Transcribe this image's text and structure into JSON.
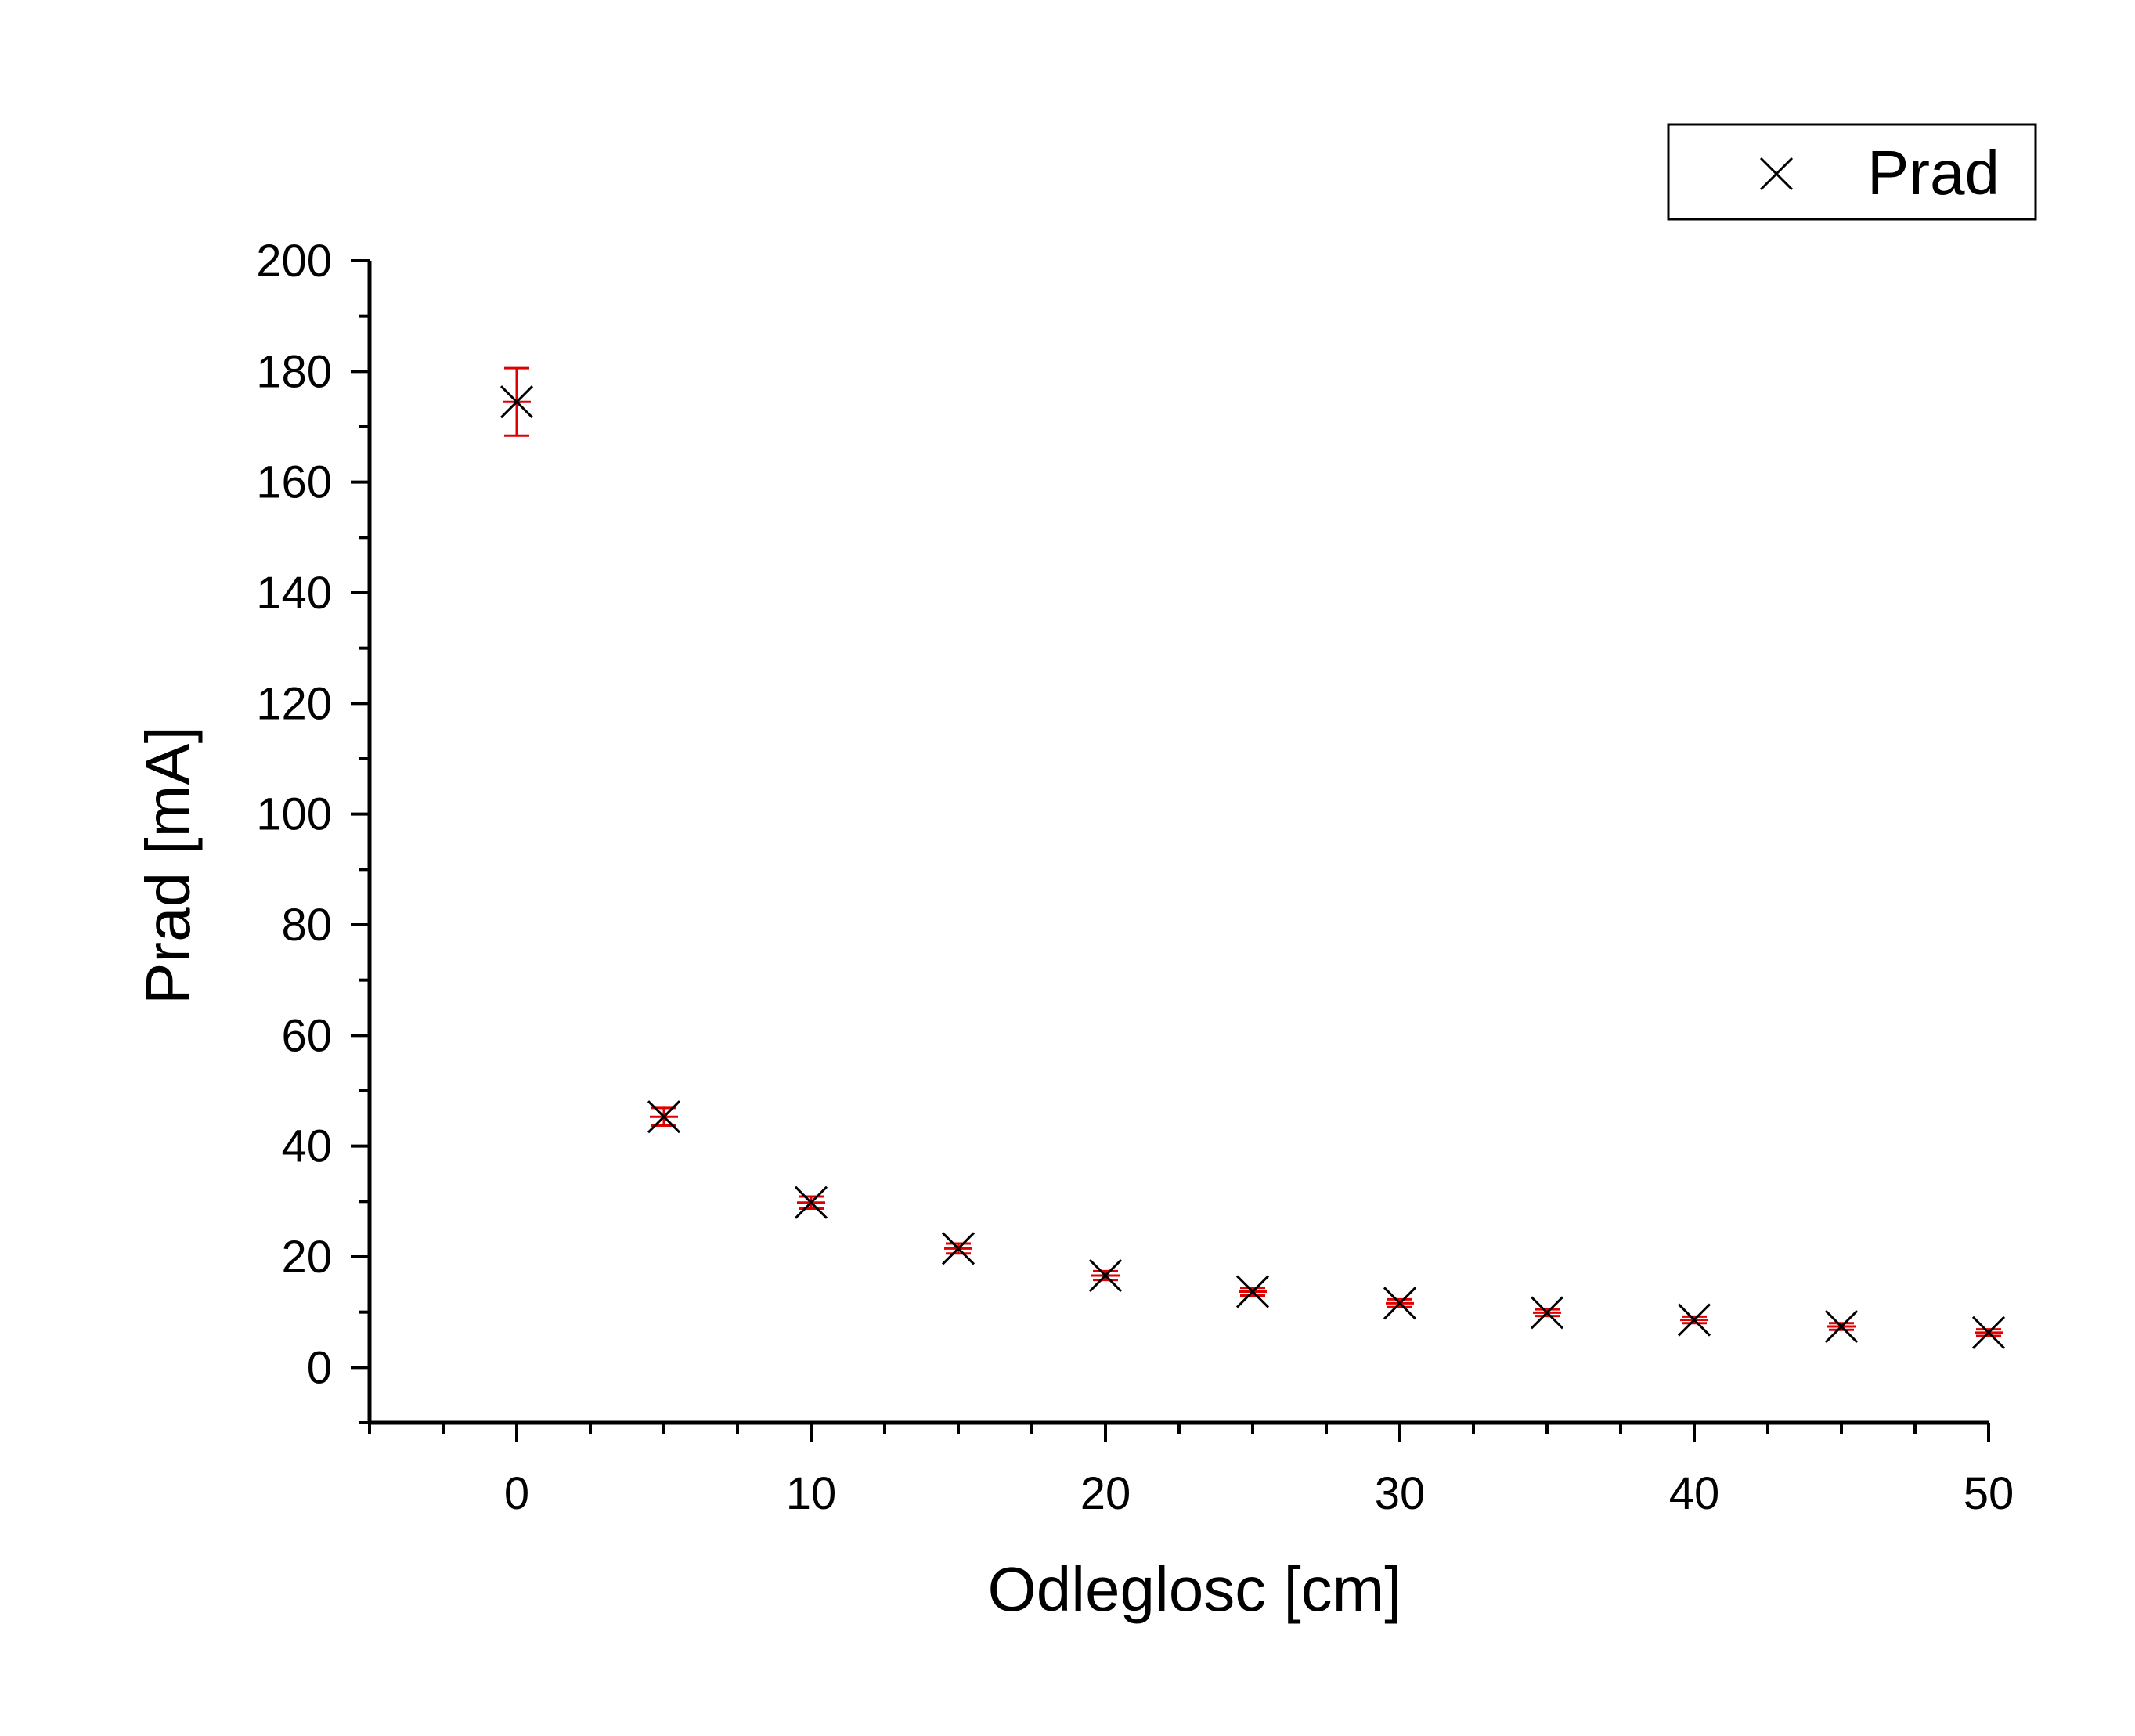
{
  "chart_data": {
    "type": "scatter",
    "xlabel": "Odleglosc [cm]",
    "ylabel": "Prad [mA]",
    "xlim": [
      -5,
      50
    ],
    "ylim": [
      -10,
      200
    ],
    "x_ticks": [
      0,
      10,
      20,
      30,
      40,
      50
    ],
    "x_minor_step": 2.5,
    "y_ticks": [
      0,
      20,
      40,
      60,
      80,
      100,
      120,
      140,
      160,
      180,
      200
    ],
    "y_minor_step": 10,
    "grid": false,
    "legend": {
      "position": "top-right"
    },
    "series": [
      {
        "name": "Prad",
        "marker": "x",
        "marker_color": "#000000",
        "error_color": "#e00000",
        "points": [
          {
            "x": 0,
            "y": 174.5,
            "err": 6.1
          },
          {
            "x": 5,
            "y": 45.3,
            "err": 1.6
          },
          {
            "x": 10,
            "y": 29.8,
            "err": 1.1
          },
          {
            "x": 15,
            "y": 21.5,
            "err": 0.9
          },
          {
            "x": 20,
            "y": 16.6,
            "err": 0.8
          },
          {
            "x": 25,
            "y": 13.7,
            "err": 0.7
          },
          {
            "x": 30,
            "y": 11.6,
            "err": 0.7
          },
          {
            "x": 35,
            "y": 9.9,
            "err": 0.6
          },
          {
            "x": 40,
            "y": 8.6,
            "err": 0.6
          },
          {
            "x": 45,
            "y": 7.4,
            "err": 0.6
          },
          {
            "x": 50,
            "y": 6.3,
            "err": 0.6
          }
        ]
      }
    ]
  }
}
